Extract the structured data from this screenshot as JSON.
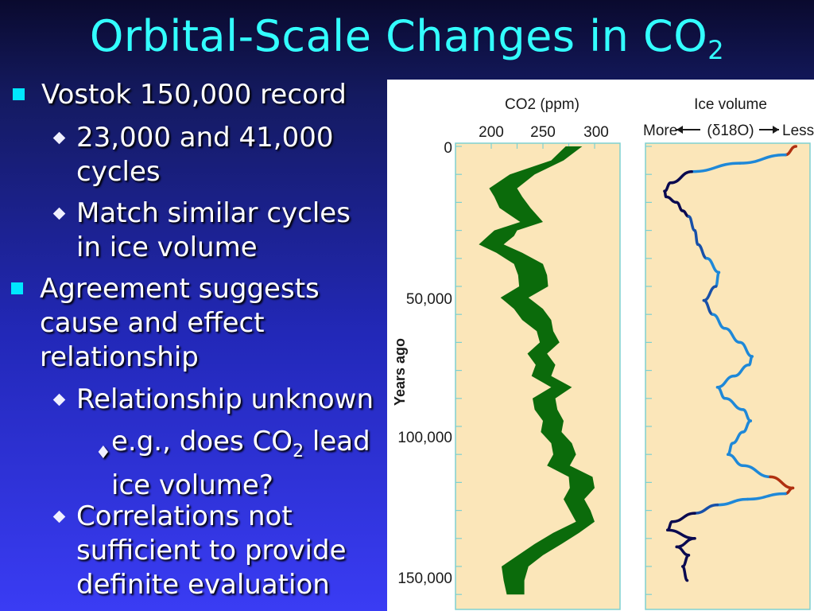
{
  "slide": {
    "title": "Orbital-Scale Changes in CO",
    "title_sub": "2",
    "bullets": {
      "b1": "Vostok 150,000 record",
      "b1_1a": "23,000 and 41,000",
      "b1_1b": "cycles",
      "b1_2a": "Match similar cycles",
      "b1_2b": "in ice volume",
      "b2a": "Agreement suggests",
      "b2b": "cause and effect",
      "b2c": "relationship",
      "b2_1": "Relationship unknown",
      "b2_1_1a": "e.g., does CO",
      "b2_1_1sub": "2",
      "b2_1_1b": " lead",
      "b2_1_1c": "ice volume?",
      "b2_2a": "Correlations not",
      "b2_2b": "sufficient to provide",
      "b2_2c": "definite evaluation"
    }
  },
  "colors": {
    "title": "#33ffff",
    "panel_fill": "#fbe6b9",
    "panel_border": "#7fd0d0",
    "co2_band": "#0b6b0b",
    "ice_dark": "#0a0a50",
    "ice_light": "#1e88d8",
    "ice_warm": "#b03010"
  },
  "chart_data": [
    {
      "type": "area",
      "title": "CO2 (ppm)",
      "xlabel": "CO2 (ppm)",
      "ylabel": "Years ago",
      "x_ticks": [
        "200",
        "250",
        "300"
      ],
      "y_ticks": [
        "0",
        "50,000",
        "100,000",
        "150,000"
      ],
      "xlim": [
        180,
        310
      ],
      "ylim": [
        0,
        160000
      ],
      "series": [
        {
          "name": "CO2",
          "y": [
            0,
            5000,
            10000,
            15000,
            18000,
            22000,
            27000,
            30000,
            32000,
            35000,
            38000,
            42000,
            46000,
            50000,
            54000,
            58000,
            62000,
            66000,
            70000,
            74000,
            78000,
            82000,
            86000,
            90000,
            94000,
            98000,
            102000,
            106000,
            110000,
            114000,
            118000,
            122000,
            126000,
            130000,
            134000,
            138000,
            142000,
            146000,
            150000,
            155000,
            160000
          ],
          "low": [
            272,
            258,
            218,
            198,
            203,
            208,
            228,
            203,
            197,
            188,
            205,
            222,
            226,
            227,
            209,
            222,
            230,
            244,
            247,
            235,
            243,
            239,
            258,
            240,
            242,
            250,
            248,
            258,
            260,
            254,
            275,
            276,
            270,
            276,
            282,
            260,
            242,
            226,
            210,
            212,
            215
          ],
          "high": [
            288,
            270,
            242,
            225,
            230,
            238,
            250,
            225,
            222,
            212,
            230,
            250,
            254,
            255,
            236,
            250,
            258,
            260,
            266,
            254,
            262,
            258,
            278,
            262,
            264,
            270,
            268,
            278,
            282,
            276,
            298,
            300,
            290,
            296,
            300,
            285,
            268,
            250,
            236,
            232,
            232
          ]
        }
      ]
    },
    {
      "type": "line",
      "title": "Ice volume",
      "xlabel": "(δ18O)",
      "x_end_labels": [
        "More",
        "Less"
      ],
      "ylim": [
        0,
        160000
      ],
      "series": [
        {
          "name": "Ice volume",
          "y": [
            0,
            3000,
            6000,
            9000,
            13000,
            16000,
            18000,
            20000,
            23000,
            25000,
            30000,
            35000,
            40000,
            45000,
            50000,
            55000,
            60000,
            65000,
            70000,
            75000,
            78000,
            82000,
            86000,
            90000,
            94000,
            98000,
            102000,
            106000,
            110000,
            114000,
            118000,
            122000,
            124000,
            126000,
            128000,
            131000,
            134000,
            137000,
            140000,
            143000,
            146000,
            150000,
            155000
          ],
          "x": [
            0.97,
            0.9,
            0.6,
            0.28,
            0.14,
            0.1,
            0.11,
            0.18,
            0.22,
            0.26,
            0.3,
            0.32,
            0.38,
            0.46,
            0.44,
            0.36,
            0.42,
            0.5,
            0.6,
            0.68,
            0.66,
            0.56,
            0.45,
            0.5,
            0.62,
            0.67,
            0.62,
            0.55,
            0.52,
            0.62,
            0.8,
            0.95,
            0.9,
            0.65,
            0.45,
            0.3,
            0.15,
            0.12,
            0.3,
            0.18,
            0.26,
            0.22,
            0.25
          ]
        }
      ]
    }
  ]
}
